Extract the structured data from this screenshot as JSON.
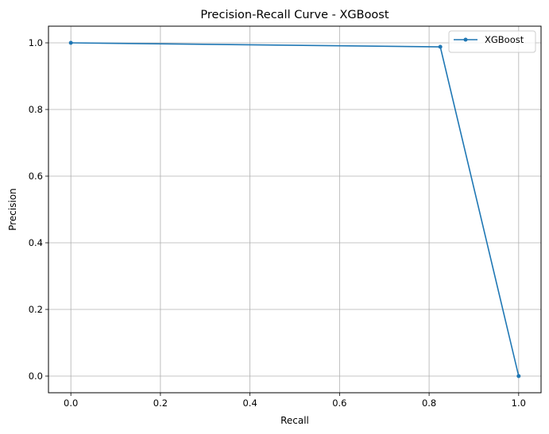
{
  "chart_data": {
    "type": "line",
    "title": "Precision-Recall Curve - XGBoost",
    "xlabel": "Recall",
    "ylabel": "Precision",
    "xlim": [
      -0.05,
      1.05
    ],
    "ylim": [
      -0.05,
      1.05
    ],
    "xticks": [
      0.0,
      0.2,
      0.4,
      0.6,
      0.8,
      1.0
    ],
    "xtick_labels": [
      "0.0",
      "0.2",
      "0.4",
      "0.6",
      "0.8",
      "1.0"
    ],
    "yticks": [
      0.0,
      0.2,
      0.4,
      0.6,
      0.8,
      1.0
    ],
    "ytick_labels": [
      "0.0",
      "0.2",
      "0.4",
      "0.6",
      "0.8",
      "1.0"
    ],
    "grid": true,
    "legend_position": "top-right",
    "series": [
      {
        "name": "XGBoost",
        "color": "#1f77b4",
        "marker": "dot",
        "x": [
          0.0,
          0.825,
          1.0
        ],
        "y": [
          1.0,
          0.988,
          0.0
        ]
      }
    ]
  }
}
